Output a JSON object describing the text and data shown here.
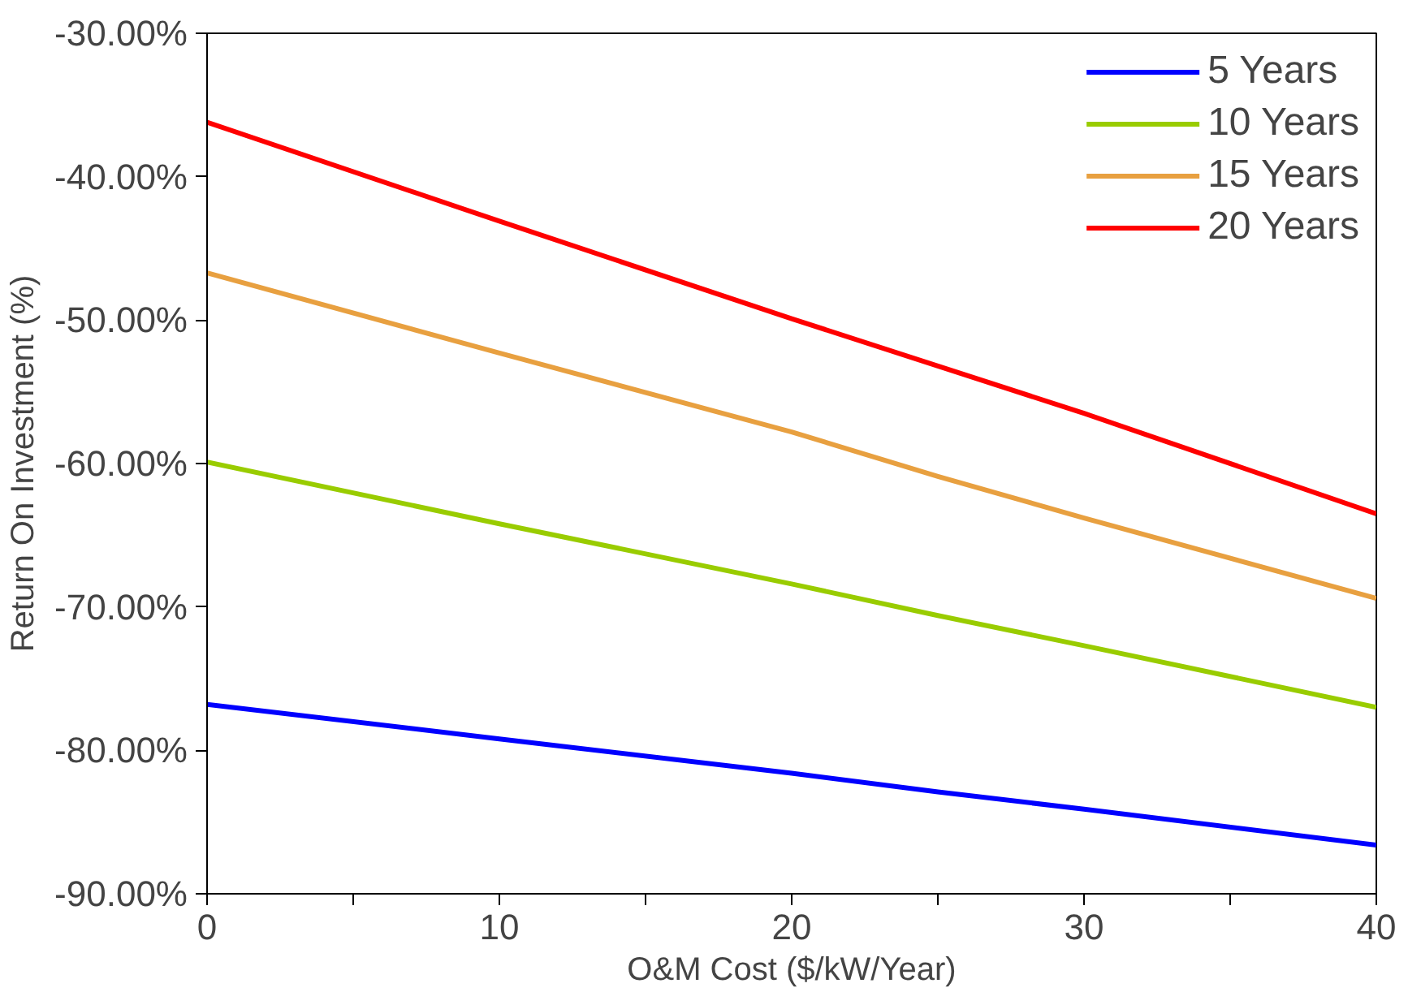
{
  "chart_data": {
    "type": "line",
    "xlabel": "O&M Cost ($/kW/Year)",
    "ylabel": "Return On Investment (%)",
    "x": [
      0,
      10,
      20,
      25,
      30,
      40
    ],
    "series": [
      {
        "name": "5 Years",
        "color": "#0000ff",
        "values": [
          -76.8,
          -79.2,
          -81.6,
          -82.9,
          -84.1,
          -86.6
        ]
      },
      {
        "name": "10 Years",
        "color": "#99cc00",
        "values": [
          -59.9,
          -64.2,
          -68.4,
          -70.6,
          -72.7,
          -77.0
        ]
      },
      {
        "name": "15 Years",
        "color": "#e8a040",
        "values": [
          -46.7,
          -52.3,
          -57.8,
          -60.9,
          -63.8,
          -69.4
        ]
      },
      {
        "name": "20 Years",
        "color": "#ff0000",
        "values": [
          -36.2,
          -43.1,
          -49.9,
          -53.2,
          -56.5,
          -63.5
        ]
      }
    ],
    "xlim": [
      0,
      40
    ],
    "ylim": [
      -90,
      -30
    ],
    "xticks": [
      0,
      {
        "value": 5,
        "label": null
      },
      10,
      {
        "value": 15,
        "label": null
      },
      20,
      {
        "value": 25,
        "label": null
      },
      30,
      {
        "value": 35,
        "label": null
      },
      40
    ],
    "yticks": [
      {
        "value": -90,
        "label": "-90.00%"
      },
      {
        "value": -80,
        "label": "-80.00%"
      },
      {
        "value": -70,
        "label": "-70.00%"
      },
      {
        "value": -60,
        "label": "-60.00%"
      },
      {
        "value": -50,
        "label": "-50.00%"
      },
      {
        "value": -40,
        "label": "-40.00%"
      },
      {
        "value": -30,
        "label": "-30.00%"
      }
    ],
    "grid": false,
    "legend": "top right",
    "marker": "none",
    "line_style": "solid"
  }
}
